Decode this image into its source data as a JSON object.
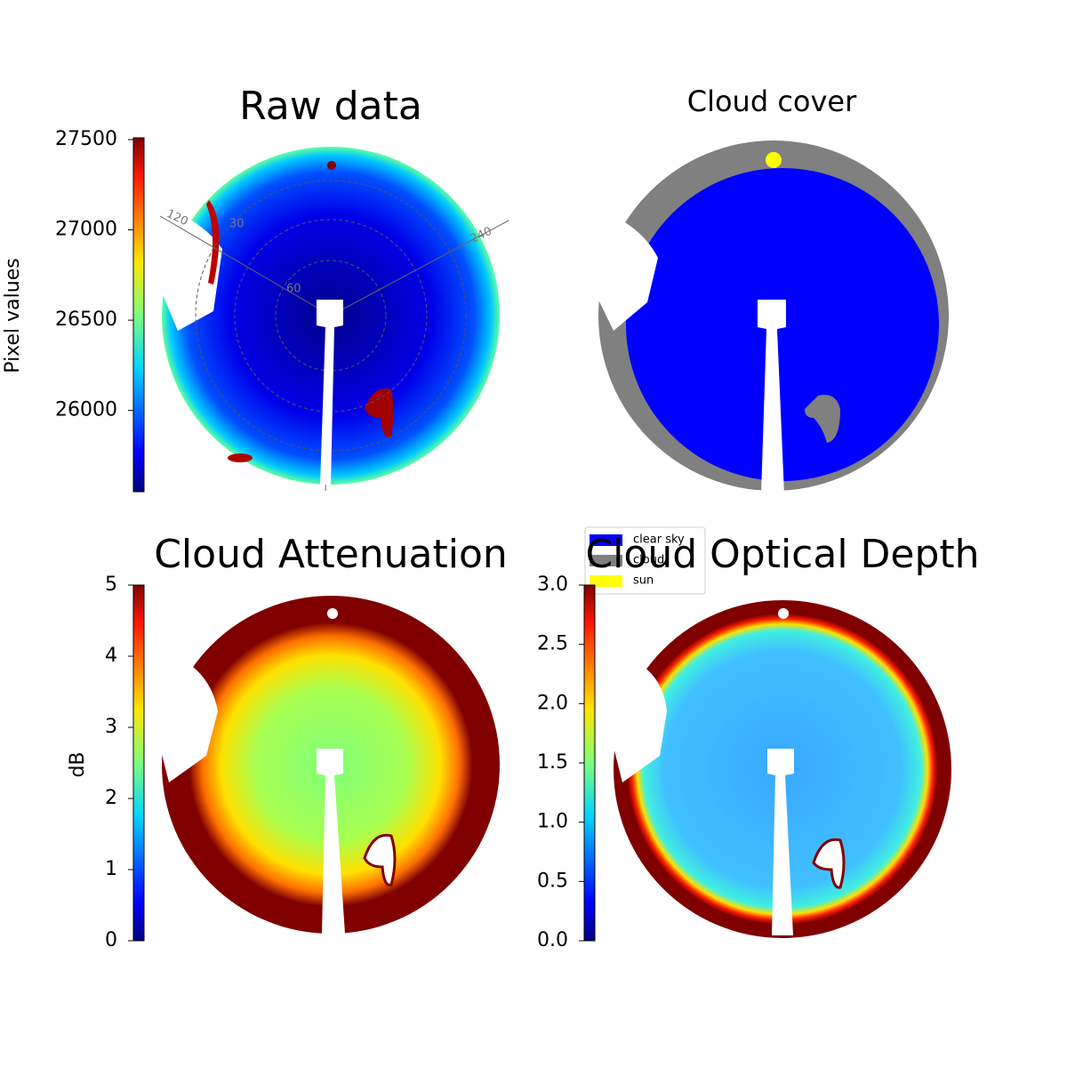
{
  "chart_data": [
    {
      "type": "image",
      "title": "Raw data",
      "colorbar_label": "Pixel values",
      "clim": [
        25550,
        27510
      ],
      "cticks": [
        26000,
        26500,
        27000,
        27500
      ],
      "colormap": "jet",
      "polar_labels": [
        "120",
        "240",
        "30",
        "60"
      ]
    },
    {
      "type": "image",
      "title": "Cloud cover",
      "series": [
        {
          "name": "clear sky",
          "color": "#0000ff"
        },
        {
          "name": "cloud",
          "color": "#808080"
        },
        {
          "name": "sun",
          "color": "#ffff00"
        }
      ]
    },
    {
      "type": "image",
      "title": "Cloud Attenuation",
      "colorbar_label": "dB",
      "clim": [
        0,
        5
      ],
      "cticks": [
        0,
        1,
        2,
        3,
        4,
        5
      ],
      "colormap": "jet"
    },
    {
      "type": "image",
      "title": "Cloud Optical Depth",
      "clim": [
        0,
        3
      ],
      "cticks": [
        {
          "value": 0,
          "label": "0.0"
        },
        0.5,
        {
          "value": 1,
          "label": "1.0"
        },
        1.5,
        {
          "value": 2,
          "label": "2.0"
        },
        2.5,
        {
          "value": 3,
          "label": "3.0"
        }
      ],
      "colormap": "jet"
    }
  ]
}
